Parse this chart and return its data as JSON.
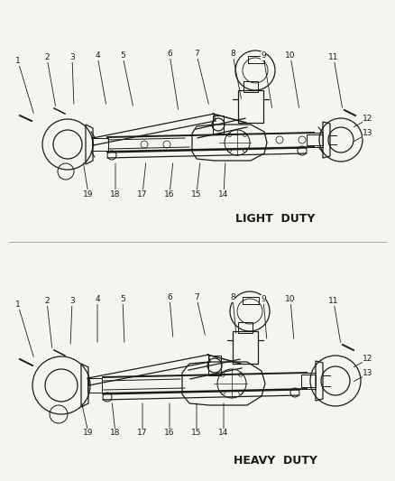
{
  "bg_color": "#f5f5f0",
  "line_color": "#1a1a1a",
  "top_label": "LIGHT  DUTY",
  "bottom_label": "HEAVY  DUTY",
  "figsize": [
    4.38,
    5.33
  ],
  "dpi": 100,
  "top_numbers": {
    "1": [
      20,
      68,
      38,
      128
    ],
    "2": [
      52,
      64,
      62,
      120
    ],
    "3": [
      80,
      64,
      82,
      118
    ],
    "4": [
      108,
      62,
      118,
      118
    ],
    "5": [
      136,
      62,
      148,
      120
    ],
    "6": [
      188,
      60,
      198,
      124
    ],
    "7": [
      218,
      60,
      232,
      118
    ],
    "8": [
      258,
      60,
      268,
      112
    ],
    "9": [
      292,
      62,
      302,
      122
    ],
    "10": [
      322,
      62,
      332,
      122
    ],
    "11": [
      370,
      64,
      380,
      122
    ],
    "12": [
      408,
      132,
      390,
      142
    ],
    "13": [
      408,
      148,
      390,
      158
    ],
    "14": [
      248,
      215,
      250,
      178
    ],
    "15": [
      218,
      215,
      222,
      178
    ],
    "16": [
      188,
      215,
      192,
      178
    ],
    "17": [
      158,
      215,
      162,
      178
    ],
    "18": [
      128,
      215,
      128,
      178
    ],
    "19": [
      98,
      215,
      92,
      178
    ]
  },
  "bottom_numbers": {
    "1": [
      20,
      338,
      38,
      398
    ],
    "2": [
      52,
      334,
      58,
      388
    ],
    "3": [
      80,
      334,
      78,
      384
    ],
    "4": [
      108,
      332,
      108,
      382
    ],
    "5": [
      136,
      332,
      138,
      382
    ],
    "6": [
      188,
      330,
      192,
      376
    ],
    "7": [
      218,
      330,
      228,
      374
    ],
    "8": [
      258,
      330,
      262,
      372
    ],
    "9": [
      292,
      332,
      296,
      378
    ],
    "10": [
      322,
      332,
      326,
      378
    ],
    "11": [
      370,
      334,
      378,
      382
    ],
    "12": [
      408,
      398,
      390,
      408
    ],
    "13": [
      408,
      414,
      390,
      424
    ],
    "14": [
      248,
      480,
      248,
      444
    ],
    "15": [
      218,
      480,
      218,
      444
    ],
    "16": [
      188,
      480,
      188,
      444
    ],
    "17": [
      158,
      480,
      158,
      444
    ],
    "18": [
      128,
      480,
      124,
      444
    ],
    "19": [
      98,
      480,
      90,
      444
    ]
  }
}
